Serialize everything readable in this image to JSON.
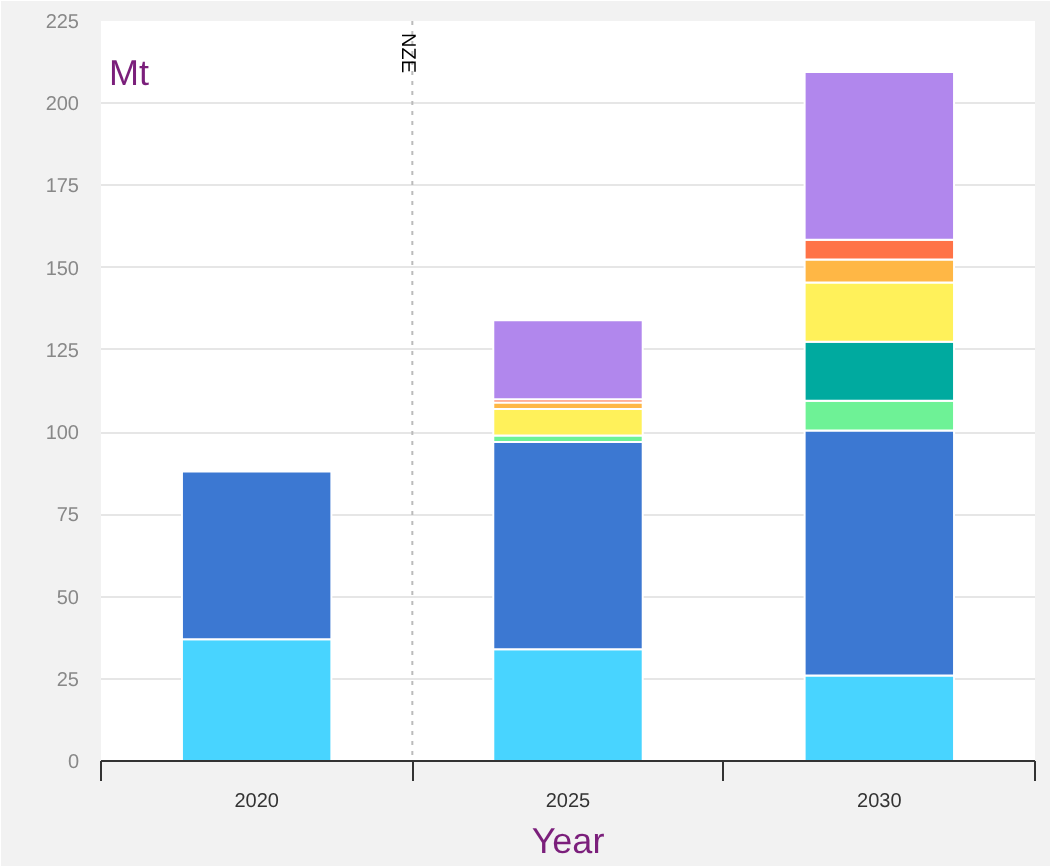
{
  "chart_data": {
    "type": "bar",
    "stacked": true,
    "xlabel": "Year",
    "ylabel": "Mt",
    "x": [
      2020,
      2025,
      2030
    ],
    "xlim": [
      2017.5,
      2032.5
    ],
    "xticks": [
      {
        "value": 2017.5,
        "label": null
      },
      2020,
      {
        "value": 2022.5,
        "label": null
      },
      2025,
      {
        "value": 2027.5,
        "label": null
      },
      2030,
      {
        "value": 2032.5,
        "label": null
      }
    ],
    "ylim": [
      0,
      225
    ],
    "yticks": [
      0,
      25,
      50,
      75,
      100,
      125,
      150,
      175,
      200,
      225
    ],
    "grid": "y",
    "ref_lines": [
      {
        "axis": "x",
        "value": 2022.5,
        "label": "NZE",
        "color": "#bbbbbb",
        "line_style": "dotted"
      }
    ],
    "series": [
      {
        "color": "#48d4ff",
        "values": [
          37,
          34,
          26
        ]
      },
      {
        "color": "#3c78d2",
        "values": [
          51,
          63,
          74.5
        ]
      },
      {
        "color": "#6ef296",
        "values": [
          0,
          2,
          9
        ]
      },
      {
        "color": "#00aa9f",
        "values": [
          0,
          0,
          18
        ]
      },
      {
        "color": "#fff15a",
        "values": [
          0,
          8,
          18
        ]
      },
      {
        "color": "#ffb745",
        "values": [
          0,
          2,
          7
        ]
      },
      {
        "color": "#ff7347",
        "values": [
          0,
          1,
          6
        ]
      },
      {
        "color": "#b187ed",
        "values": [
          0,
          24,
          51
        ]
      }
    ]
  }
}
